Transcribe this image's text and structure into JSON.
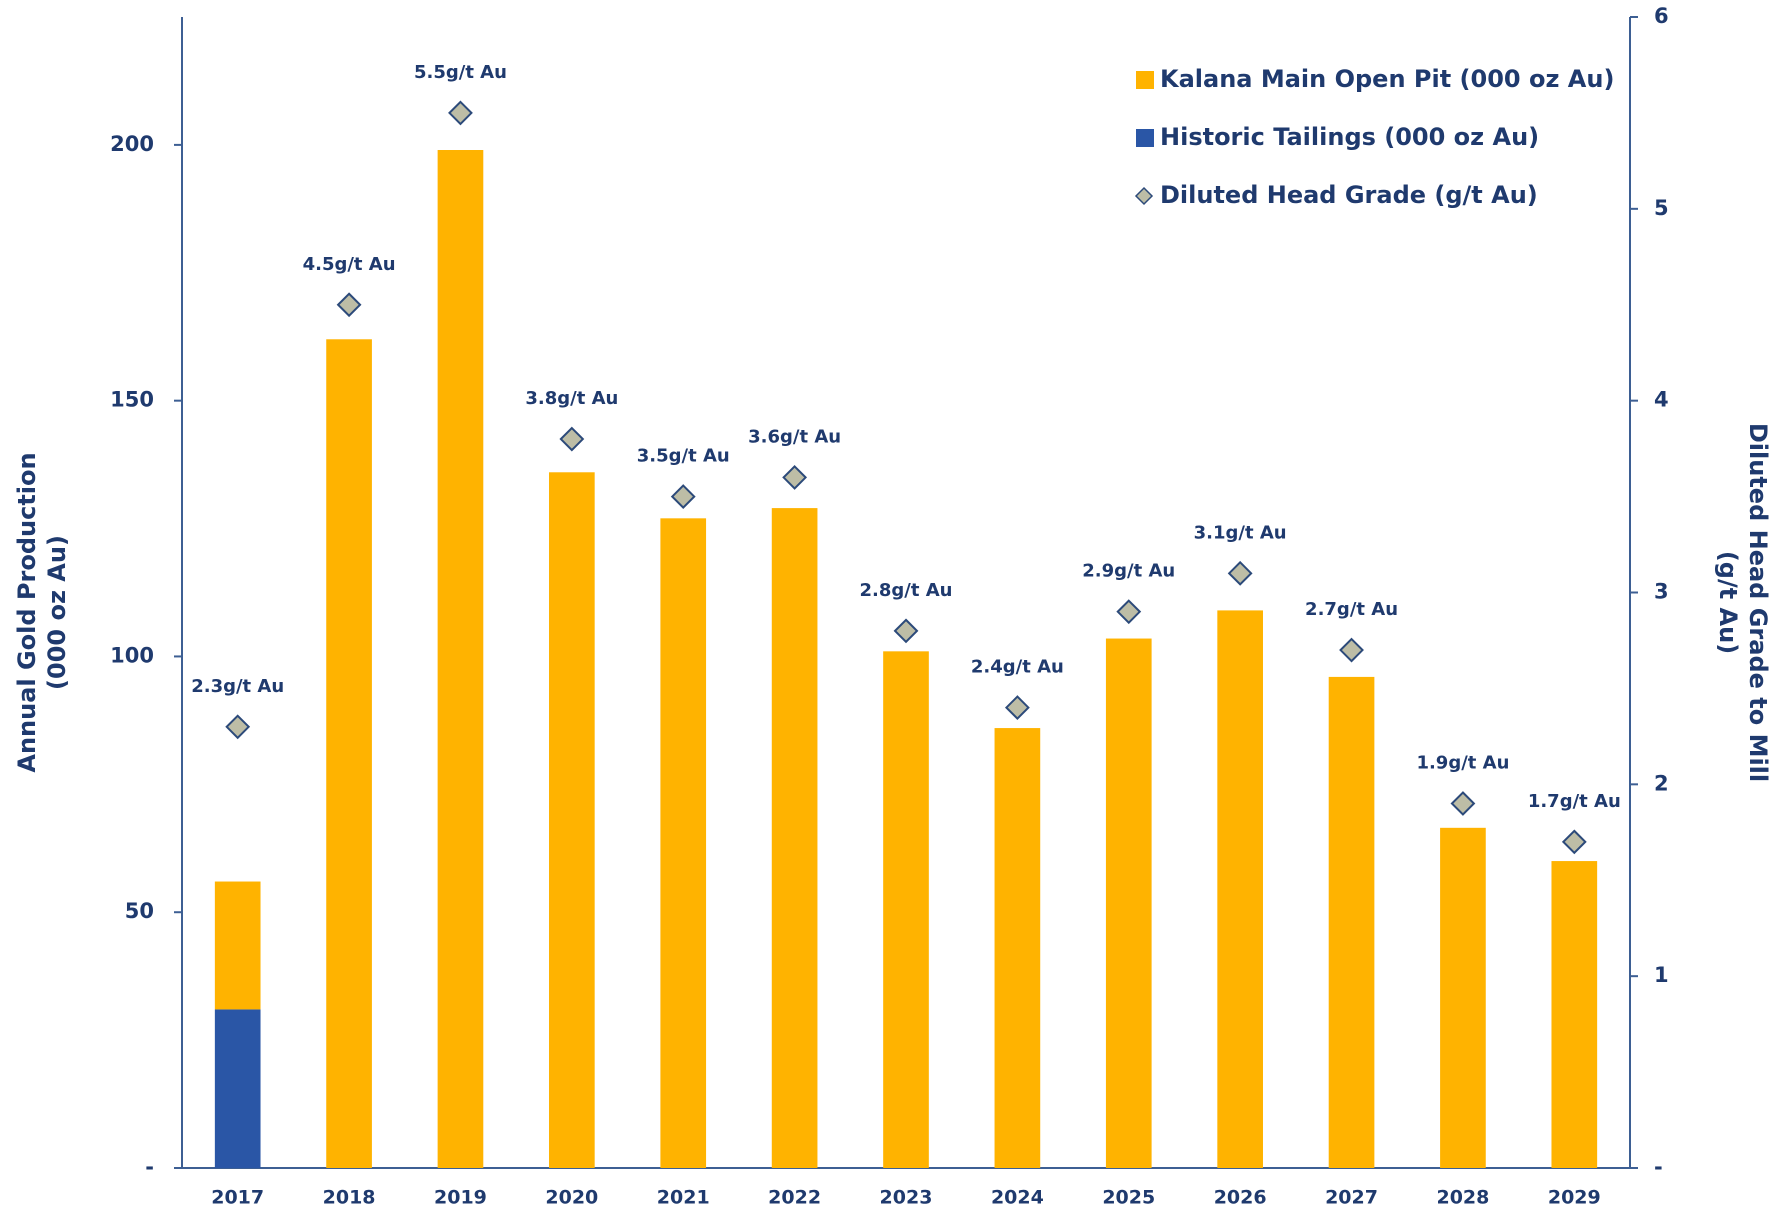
{
  "chart_data": {
    "type": "bar",
    "y_label": [
      "Annual Gold Production",
      "(000 oz Au)"
    ],
    "y2_label": [
      "Diluted Head Grade to Mill",
      "(g/t Au)"
    ],
    "categories": [
      "2017",
      "2018",
      "2019",
      "2020",
      "2021",
      "2022",
      "2023",
      "2024",
      "2025",
      "2026",
      "2027",
      "2028",
      "2029"
    ],
    "series": [
      {
        "name": "Kalana Main Open Pit (000 oz Au)",
        "color": "#FFB300",
        "stack": true,
        "values": [
          25,
          162,
          199,
          136,
          127,
          129,
          101,
          86,
          103.5,
          109,
          96,
          66.5,
          60
        ]
      },
      {
        "name": "Historic Tailings (000 oz Au)",
        "color": "#2A56A6",
        "stack": true,
        "values": [
          31,
          null,
          null,
          null,
          null,
          null,
          null,
          null,
          null,
          null,
          null,
          null,
          null
        ]
      },
      {
        "name": "Diluted Head Grade (g/t Au)",
        "color": "#BDBDA6",
        "axis": "y2",
        "marker": "diamond",
        "values": [
          2.3,
          4.5,
          5.5,
          3.8,
          3.5,
          3.6,
          2.8,
          2.4,
          2.9,
          3.1,
          2.7,
          1.9,
          1.7
        ],
        "value_labels": [
          "2.3g/t Au",
          "4.5g/t Au",
          "5.5g/t Au",
          "3.8g/t Au",
          "3.5g/t Au",
          "3.6g/t Au",
          "2.8g/t Au",
          "2.4g/t Au",
          "2.9g/t Au",
          "3.1g/t Au",
          "2.7g/t Au",
          "1.9g/t Au",
          "1.7g/t Au"
        ]
      }
    ],
    "stack_order": [
      1,
      0
    ],
    "ylim": [
      0,
      225
    ],
    "yticks": [
      {
        "value": 0,
        "label": "-"
      },
      50,
      100,
      150,
      200
    ],
    "y2lim": [
      0,
      6
    ],
    "y2ticks": [
      {
        "value": 0,
        "label": "-"
      },
      1,
      2,
      3,
      4,
      5,
      6
    ],
    "legend": "top-right"
  }
}
